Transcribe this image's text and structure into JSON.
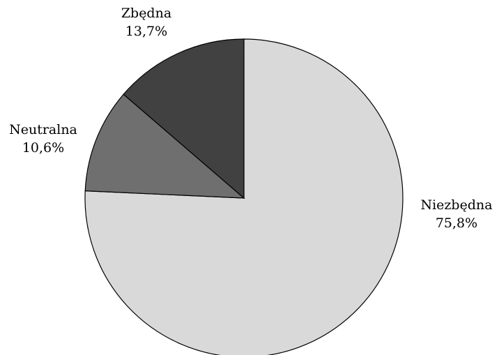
{
  "chart_data": {
    "type": "pie",
    "categories": [
      "Niezbędna",
      "Neutralna",
      "Zbędna"
    ],
    "values": [
      75.8,
      10.6,
      13.7
    ],
    "value_labels": [
      "75,8%",
      "10,6%",
      "13,7%"
    ],
    "colors": [
      "#d9d9d9",
      "#6f6f6f",
      "#414141"
    ]
  }
}
